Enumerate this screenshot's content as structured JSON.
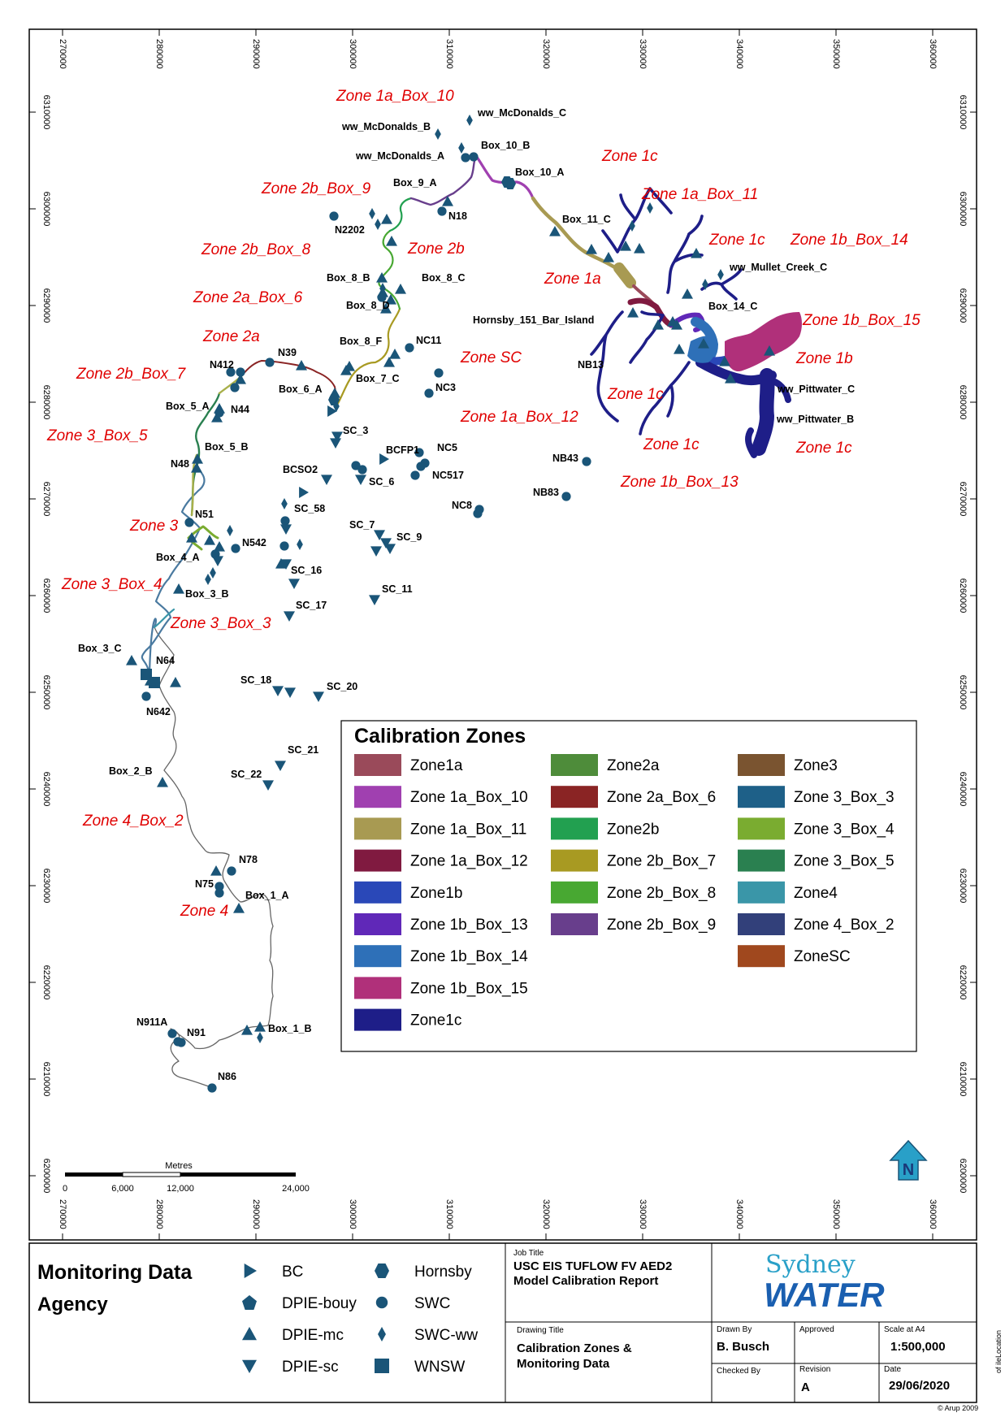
{
  "grid": {
    "x_ticks": [
      "270000",
      "280000",
      "290000",
      "300000",
      "310000",
      "320000",
      "330000",
      "340000",
      "350000",
      "360000"
    ],
    "y_ticks": [
      "6310000",
      "6300000",
      "6290000",
      "6280000",
      "6270000",
      "6260000",
      "6250000",
      "6240000",
      "6230000",
      "6220000",
      "6210000",
      "6200000"
    ]
  },
  "zone_labels": [
    "Zone 1a_Box_10",
    "Zone 1c",
    "Zone 2b_Box_9",
    "Zone 1a_Box_11",
    "Zone 2b_Box_8",
    "Zone 2b",
    "Zone 1c",
    "Zone 1b_Box_14",
    "Zone 2a_Box_6",
    "Zone 1a",
    "Zone 1b_Box_15",
    "Zone 2a",
    "Zone SC",
    "Zone 1b",
    "Zone 2b_Box_7",
    "Zone 1c",
    "Zone 1a_Box_12",
    "Zone 3_Box_5",
    "Zone 1c",
    "Zone 1c",
    "Zone 1b_Box_13",
    "Zone 3",
    "Zone 3_Box_4",
    "Zone 3_Box_3",
    "Zone 4_Box_2",
    "Zone 4"
  ],
  "site_labels": [
    "ww_McDonalds_C",
    "ww_McDonalds_B",
    "ww_McDonalds_A",
    "Box_10_B",
    "Box_10_A",
    "Box_9_A",
    "N18",
    "N2202",
    "Box_11_C",
    "ww_Mullet_Creek_C",
    "Box_8_B",
    "Box_8_C",
    "Box_8_D",
    "Hornsby_151_Bar_Island",
    "Box_14_C",
    "Box_8_F",
    "NC11",
    "N39",
    "N412",
    "NB13",
    "Box_7_C",
    "Box_6_A",
    "NC3",
    "ww_Pittwater_C",
    "Box_5_A",
    "N44",
    "ww_Pittwater_B",
    "SC_3",
    "BCFP1",
    "NC5",
    "Box_5_B",
    "N48",
    "NB43",
    "BCSO2",
    "NC517",
    "SC_6",
    "NB83",
    "NC8",
    "SC_58",
    "N51",
    "SC_7",
    "SC_9",
    "N542",
    "Box_4_A",
    "SC_16",
    "Box_3_B",
    "SC_11",
    "SC_17",
    "Box_3_C",
    "N64",
    "N642",
    "SC_18",
    "SC_20",
    "SC_21",
    "Box_2_B",
    "SC_22",
    "N78",
    "N75",
    "Box_1_A",
    "N911A",
    "N91",
    "Box_1_B",
    "N86"
  ],
  "scale_bar": {
    "title": "Metres",
    "labels": [
      "0",
      "6,000",
      "12,000",
      "24,000"
    ]
  },
  "calibration_legend": {
    "title": "Calibration Zones",
    "items": [
      {
        "label": "Zone1a",
        "color": "#9a4a5a"
      },
      {
        "label": "Zone 1a_Box_10",
        "color": "#a040b0"
      },
      {
        "label": "Zone 1a_Box_11",
        "color": "#a89a52"
      },
      {
        "label": "Zone 1a_Box_12",
        "color": "#801a40"
      },
      {
        "label": "Zone1b",
        "color": "#2a48b8"
      },
      {
        "label": "Zone 1b_Box_13",
        "color": "#6028b8"
      },
      {
        "label": "Zone 1b_Box_14",
        "color": "#2e70b8"
      },
      {
        "label": "Zone 1b_Box_15",
        "color": "#b0307a"
      },
      {
        "label": "Zone1c",
        "color": "#1e1e88"
      },
      {
        "label": "Zone2a",
        "color": "#4e8c3a"
      },
      {
        "label": "Zone 2a_Box_6",
        "color": "#8a2424"
      },
      {
        "label": "Zone2b",
        "color": "#22a050"
      },
      {
        "label": "Zone 2b_Box_7",
        "color": "#a89a22"
      },
      {
        "label": "Zone 2b_Box_8",
        "color": "#48a832"
      },
      {
        "label": "Zone 2b_Box_9",
        "color": "#683e8c"
      },
      {
        "label": "Zone3",
        "color": "#7a5430"
      },
      {
        "label": "Zone 3_Box_3",
        "color": "#1e6088"
      },
      {
        "label": "Zone 3_Box_4",
        "color": "#7aac30"
      },
      {
        "label": "Zone 3_Box_5",
        "color": "#2a8050"
      },
      {
        "label": "Zone4",
        "color": "#3a96a8"
      },
      {
        "label": "Zone 4_Box_2",
        "color": "#32407a"
      },
      {
        "label": "ZoneSC",
        "color": "#a0481e"
      }
    ]
  },
  "title_block": {
    "heading_1": "Monitoring Data",
    "heading_2": "Agency",
    "agencies": [
      {
        "label": "BC",
        "symbol": "right-triangle-icon"
      },
      {
        "label": "DPIE-bouy",
        "symbol": "pentagon-icon"
      },
      {
        "label": "DPIE-mc",
        "symbol": "triangle-icon"
      },
      {
        "label": "DPIE-sc",
        "symbol": "down-triangle-icon"
      },
      {
        "label": "Hornsby",
        "symbol": "hexagon-icon"
      },
      {
        "label": "SWC",
        "symbol": "circle-icon"
      },
      {
        "label": "SWC-ww",
        "symbol": "diamond-icon"
      },
      {
        "label": "WNSW",
        "symbol": "square-icon"
      }
    ],
    "symbol_color": "#1a5578",
    "job_title_caption": "Job Title",
    "job_title_line1": "USC EIS TUFLOW FV AED2",
    "job_title_line2": "Model Calibration Report",
    "drawing_title_caption": "Drawing Title",
    "drawing_title_line1": "Calibration Zones &",
    "drawing_title_line2": "Monitoring Data",
    "logo_top": "Sydney",
    "logo_bottom": "WATER",
    "drawn_by_caption": "Drawn By",
    "drawn_by": "B. Busch",
    "approved_caption": "Approved",
    "scale_caption": "Scale at A4",
    "scale": "1:500,000",
    "checked_by_caption": "Checked By",
    "revision_caption": "Revision",
    "revision": "A",
    "date_caption": "Date",
    "date": "29/06/2020",
    "copyright": "© Arup 2009",
    "side_text": "of ileLocation"
  },
  "colors": {
    "marker": "#1a5578",
    "label_red": "#e00000",
    "zone1c": "#1e1e88",
    "zone15": "#b0307a"
  }
}
